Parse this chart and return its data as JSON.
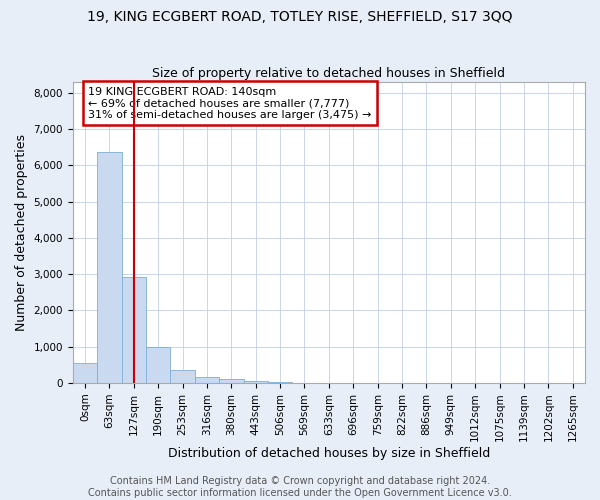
{
  "title": "19, KING ECGBERT ROAD, TOTLEY RISE, SHEFFIELD, S17 3QQ",
  "subtitle": "Size of property relative to detached houses in Sheffield",
  "xlabel": "Distribution of detached houses by size in Sheffield",
  "ylabel": "Number of detached properties",
  "footer_line1": "Contains HM Land Registry data © Crown copyright and database right 2024.",
  "footer_line2": "Contains public sector information licensed under the Open Government Licence v3.0.",
  "bar_labels": [
    "0sqm",
    "63sqm",
    "127sqm",
    "190sqm",
    "253sqm",
    "316sqm",
    "380sqm",
    "443sqm",
    "506sqm",
    "569sqm",
    "633sqm",
    "696sqm",
    "759sqm",
    "822sqm",
    "886sqm",
    "949sqm",
    "1012sqm",
    "1075sqm",
    "1139sqm",
    "1202sqm",
    "1265sqm"
  ],
  "bar_values": [
    560,
    6380,
    2930,
    980,
    370,
    175,
    105,
    60,
    35,
    0,
    0,
    0,
    0,
    0,
    0,
    0,
    0,
    0,
    0,
    0,
    0
  ],
  "bar_color": "#c9d9f0",
  "bar_edge_color": "#7bafd4",
  "vline_x": 2,
  "vline_color": "#cc0000",
  "annotation_line1": "19 KING ECGBERT ROAD: 140sqm",
  "annotation_line2": "← 69% of detached houses are smaller (7,777)",
  "annotation_line3": "31% of semi-detached houses are larger (3,475) →",
  "annotation_box_color": "white",
  "annotation_box_edge_color": "#cc0000",
  "ylim": [
    0,
    8300
  ],
  "yticks": [
    0,
    1000,
    2000,
    3000,
    4000,
    5000,
    6000,
    7000,
    8000
  ],
  "background_color": "#e8eef8",
  "plot_bg_color": "white",
  "grid_color": "#c0d0e8",
  "title_fontsize": 10,
  "subtitle_fontsize": 9,
  "axis_label_fontsize": 9,
  "tick_fontsize": 7.5,
  "annotation_fontsize": 8,
  "footer_fontsize": 7
}
